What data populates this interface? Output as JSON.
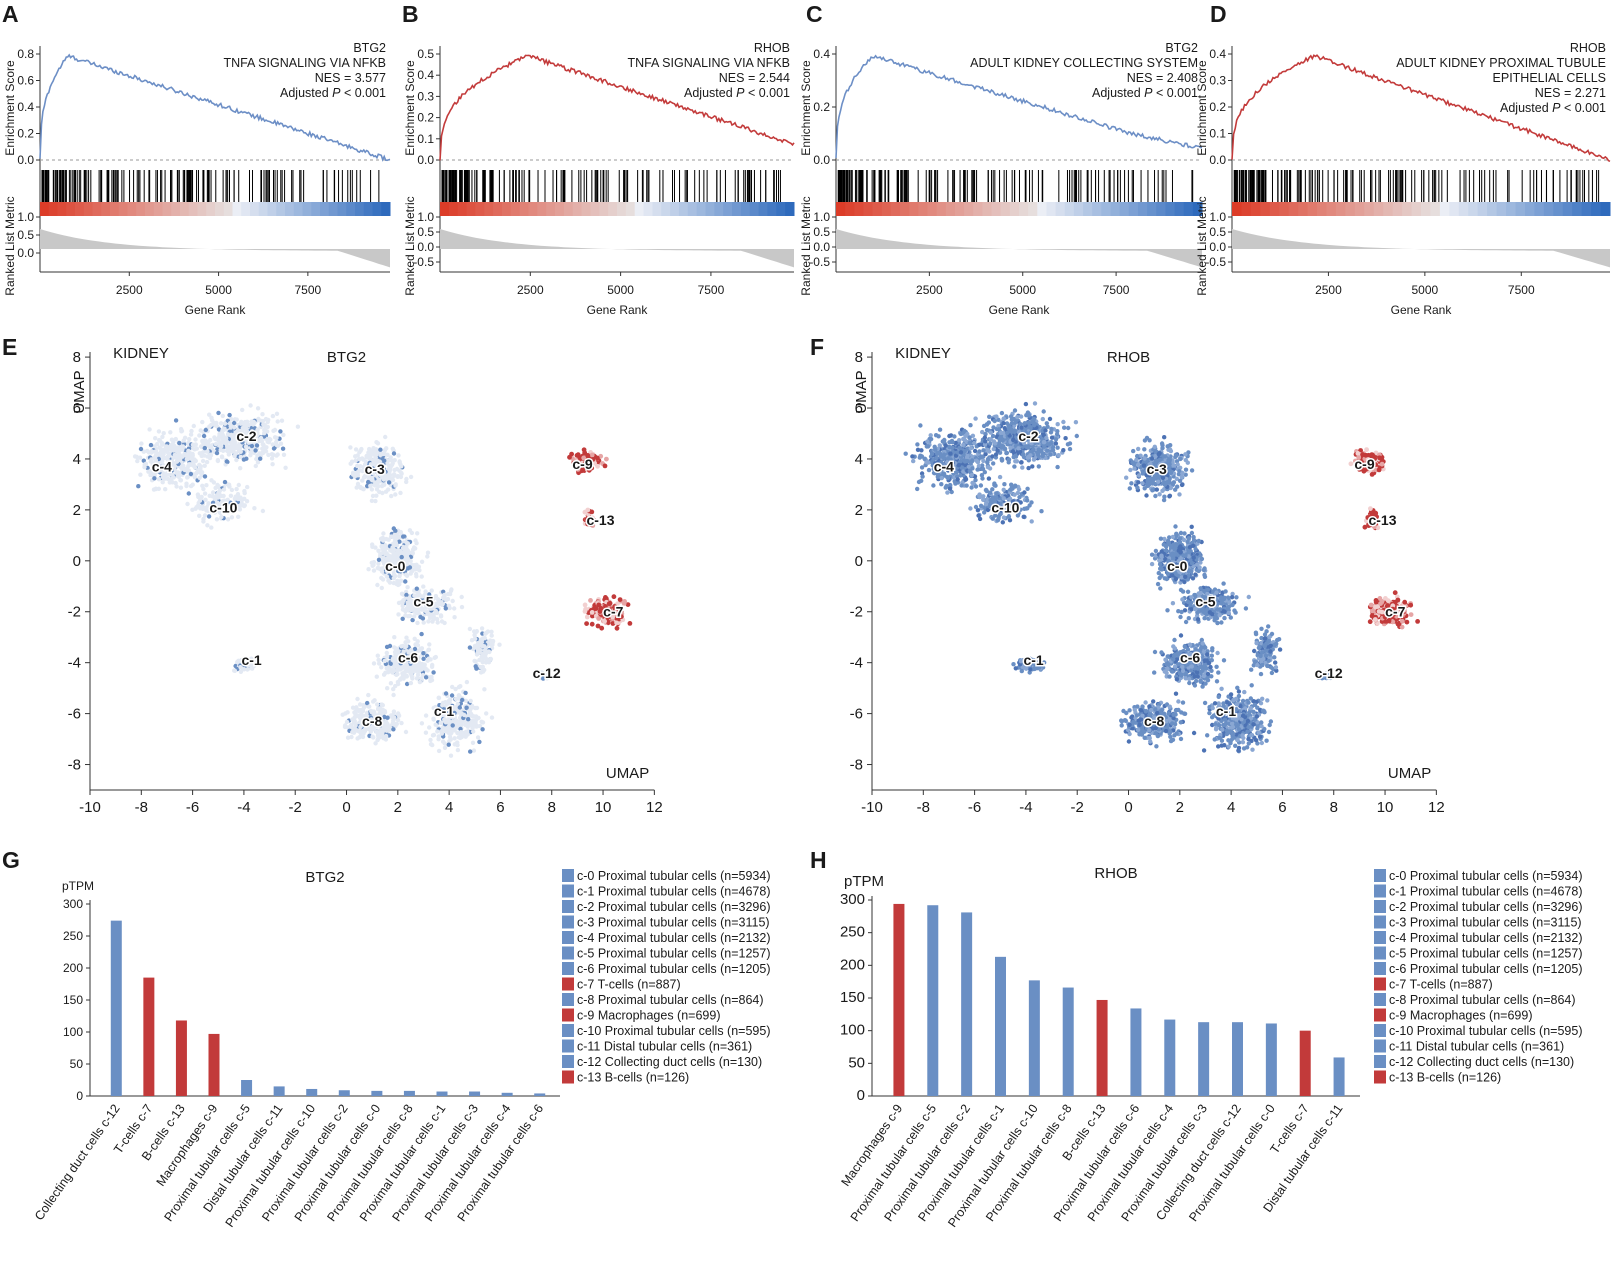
{
  "figure": {
    "panel_labels": [
      "A",
      "B",
      "C",
      "D",
      "E",
      "F",
      "G",
      "H"
    ],
    "colors": {
      "pos": "#c23a3a",
      "neg": "#6a8fc4",
      "light": "#e3e9f3",
      "curve_blue": "#6d8fc6",
      "curve_red": "#c33b3b"
    }
  },
  "gsea": {
    "axis": {
      "es_label": "Enrichment Score",
      "rank_label": "Ranked List Metric",
      "x_label": "Gene Rank",
      "x_ticks": [
        "2500",
        "5000",
        "7500"
      ]
    },
    "panels": [
      {
        "gene": "BTG2",
        "set_lines": [
          "TNFA SIGNALING VIA NFKB"
        ],
        "nes": "NES = 3.577",
        "padj_prefix": "Adjusted ",
        "padj_p": "P",
        "padj_suffix": " < 0.001",
        "es_ticks": [
          "0.8",
          "0.6",
          "0.4",
          "0.2",
          "0.0"
        ],
        "metric_ticks": [
          "1.0",
          "0.5",
          "0.0"
        ],
        "curve_color": "blue"
      },
      {
        "gene": "RHOB",
        "set_lines": [
          "TNFA SIGNALING VIA NFKB"
        ],
        "nes": "NES = 2.544",
        "padj_prefix": "Adjusted ",
        "padj_p": "P",
        "padj_suffix": " < 0.001",
        "es_ticks": [
          "0.5",
          "0.4",
          "0.3",
          "0.2",
          "0.1",
          "0.0"
        ],
        "metric_ticks": [
          "1.0",
          "0.5",
          "0.0",
          "-0.5"
        ],
        "curve_color": "red"
      },
      {
        "gene": "BTG2",
        "set_lines": [
          "ADULT KIDNEY COLLECTING SYSTEM"
        ],
        "nes": "NES = 2.408",
        "padj_prefix": "Adjusted ",
        "padj_p": "P",
        "padj_suffix": " < 0.001",
        "es_ticks": [
          "0.4",
          "0.2",
          "0.0"
        ],
        "metric_ticks": [
          "1.0",
          "0.5",
          "0.0",
          "-0.5"
        ],
        "curve_color": "blue"
      },
      {
        "gene": "RHOB",
        "set_lines": [
          "ADULT KIDNEY PROXIMAL TUBULE",
          "EPITHELIAL CELLS"
        ],
        "nes": "NES = 2.271",
        "padj_prefix": "Adjusted ",
        "padj_p": "P",
        "padj_suffix": " < 0.001",
        "es_ticks": [
          "0.4",
          "0.3",
          "0.2",
          "0.1",
          "0.0"
        ],
        "metric_ticks": [
          "1.0",
          "0.5",
          "0.0",
          "-0.5"
        ],
        "curve_color": "red"
      }
    ]
  },
  "umap": {
    "axis_label": "UMAP",
    "x_ticks": [
      "-10",
      "-8",
      "-6",
      "-4",
      "-2",
      "0",
      "2",
      "4",
      "6",
      "8",
      "10",
      "12"
    ],
    "y_ticks": [
      "8",
      "6",
      "4",
      "2",
      "0",
      "-2",
      "-4",
      "-6",
      "-8"
    ],
    "panels": [
      {
        "tissue": "KIDNEY",
        "gene": "BTG2"
      },
      {
        "tissue": "KIDNEY",
        "gene": "RHOB"
      }
    ],
    "cluster_labels": [
      "c-4",
      "c-2",
      "c-3",
      "c-10",
      "c-9",
      "c-13",
      "c-0",
      "c-5",
      "c-7",
      "c-1",
      "c-6",
      "c-12",
      "c-8",
      "c-1"
    ]
  },
  "legend": {
    "items": [
      {
        "text": "c-0 Proximal tubular cells (n=5934)",
        "type": "blue"
      },
      {
        "text": "c-1 Proximal tubular cells (n=4678)",
        "type": "blue"
      },
      {
        "text": "c-2 Proximal tubular cells (n=3296)",
        "type": "blue"
      },
      {
        "text": "c-3 Proximal tubular cells (n=3115)",
        "type": "blue"
      },
      {
        "text": "c-4 Proximal tubular cells (n=2132)",
        "type": "blue"
      },
      {
        "text": "c-5 Proximal tubular cells (n=1257)",
        "type": "blue"
      },
      {
        "text": "c-6 Proximal tubular cells (n=1205)",
        "type": "blue"
      },
      {
        "text": "c-7 T-cells (n=887)",
        "type": "red"
      },
      {
        "text": "c-8 Proximal tubular cells (n=864)",
        "type": "blue"
      },
      {
        "text": "c-9 Macrophages (n=699)",
        "type": "red"
      },
      {
        "text": "c-10 Proximal tubular cells (n=595)",
        "type": "blue"
      },
      {
        "text": "c-11 Distal tubular cells (n=361)",
        "type": "blue"
      },
      {
        "text": "c-12 Collecting duct cells (n=130)",
        "type": "blue"
      },
      {
        "text": "c-13 B-cells (n=126)",
        "type": "red"
      }
    ]
  },
  "chart_data": [
    {
      "type": "bar",
      "title": "BTG2",
      "ylabel": "pTPM",
      "ylim": [
        0,
        300
      ],
      "yticks": [
        "300",
        "250",
        "200",
        "150",
        "100",
        "50",
        "0"
      ],
      "categories": [
        "Collecting duct cells c-12",
        "T-cells c-7",
        "B-cells c-13",
        "Macrophages c-9",
        "Proximal tubular cells c-5",
        "Distal tubular cells c-11",
        "Proximal tubular cells c-10",
        "Proximal tubular cells c-2",
        "Proximal tubular cells c-0",
        "Proximal tubular cells c-8",
        "Proximal tubular cells c-1",
        "Proximal tubular cells c-3",
        "Proximal tubular cells c-4",
        "Proximal tubular cells c-6"
      ],
      "values": [
        274,
        185,
        118,
        97,
        25,
        15,
        11,
        9,
        8,
        8,
        7,
        7,
        5,
        4
      ],
      "colors": [
        "blue",
        "red",
        "red",
        "red",
        "blue",
        "blue",
        "blue",
        "blue",
        "blue",
        "blue",
        "blue",
        "blue",
        "blue",
        "blue"
      ]
    },
    {
      "type": "bar",
      "title": "RHOB",
      "ylabel": "pTPM",
      "ylim": [
        0,
        300
      ],
      "yticks": [
        "300",
        "250",
        "200",
        "150",
        "100",
        "50",
        "0"
      ],
      "categories": [
        "Macrophages c-9",
        "Proximal tubular cells c-5",
        "Proximal tubular cells c-2",
        "Proximal tubular cells c-1",
        "Proximal tubular cells c-10",
        "Proximal tubular cells c-8",
        "B-cells c-13",
        "Proximal tubular cells c-6",
        "Proximal tubular cells c-4",
        "Proximal tubular cells c-3",
        "Collecting duct cells c-12",
        "Proximal tubular cells c-0",
        "T-cells c-7",
        "Distal tubular cells c-11"
      ],
      "values": [
        294,
        292,
        281,
        213,
        177,
        166,
        147,
        134,
        117,
        113,
        113,
        111,
        100,
        59
      ],
      "colors": [
        "red",
        "blue",
        "blue",
        "blue",
        "blue",
        "blue",
        "red",
        "blue",
        "blue",
        "blue",
        "blue",
        "blue",
        "red",
        "blue"
      ]
    }
  ]
}
